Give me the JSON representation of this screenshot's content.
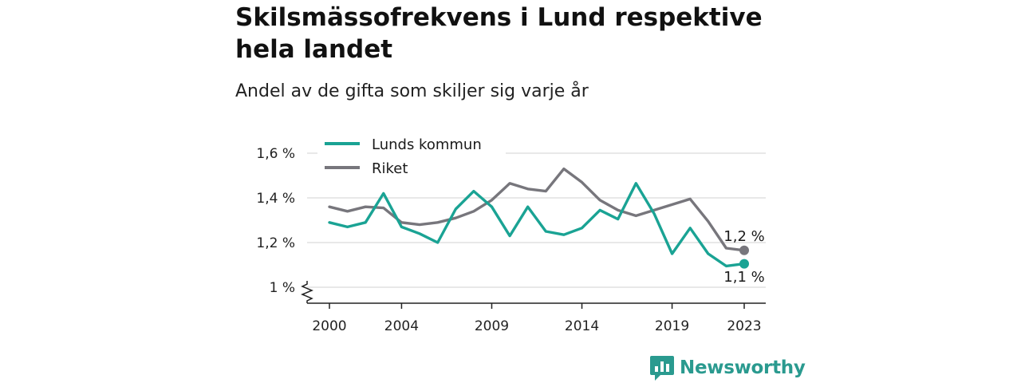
{
  "title": "Skilsmässofrekvens i Lund respektive hela landet",
  "subtitle": "Andel av de gifta som skiljer sig varje år",
  "brand": "Newsworthy",
  "colors": {
    "lund": "#1aa394",
    "riket": "#77767c",
    "brand": "#2a9a8f"
  },
  "chart_data": {
    "type": "line",
    "x": [
      2000,
      2001,
      2002,
      2003,
      2004,
      2005,
      2006,
      2007,
      2008,
      2009,
      2010,
      2011,
      2012,
      2013,
      2014,
      2015,
      2016,
      2017,
      2018,
      2019,
      2020,
      2021,
      2022,
      2023
    ],
    "series": [
      {
        "name": "Lunds kommun",
        "color": "#1aa394",
        "values": [
          1.29,
          1.27,
          1.29,
          1.42,
          1.27,
          1.24,
          1.2,
          1.35,
          1.43,
          1.36,
          1.23,
          1.36,
          1.25,
          1.235,
          1.265,
          1.345,
          1.305,
          1.465,
          1.33,
          1.15,
          1.265,
          1.15,
          1.095,
          1.105
        ],
        "end_label": "1,1 %"
      },
      {
        "name": "Riket",
        "color": "#77767c",
        "values": [
          1.36,
          1.34,
          1.36,
          1.355,
          1.29,
          1.28,
          1.29,
          1.31,
          1.34,
          1.39,
          1.465,
          1.44,
          1.43,
          1.53,
          1.47,
          1.39,
          1.345,
          1.32,
          1.345,
          1.37,
          1.395,
          1.295,
          1.175,
          1.165
        ],
        "end_label": "1,2 %"
      }
    ],
    "x_ticks": [
      2000,
      2004,
      2009,
      2014,
      2019,
      2023
    ],
    "y_ticks": [
      {
        "value": 1.0,
        "label": "1 %"
      },
      {
        "value": 1.2,
        "label": "1,2 %"
      },
      {
        "value": 1.4,
        "label": "1,4 %"
      },
      {
        "value": 1.6,
        "label": "1,6 %"
      }
    ],
    "ylim": [
      1.0,
      1.6
    ],
    "y_axis_break": true,
    "grid": true,
    "legend_position": "top-left"
  }
}
